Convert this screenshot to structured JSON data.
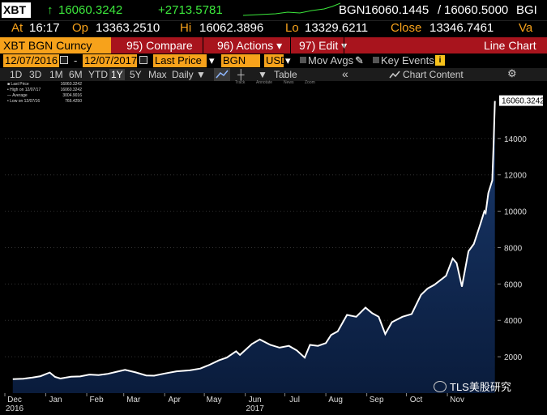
{
  "quote": {
    "ticker": "XBT",
    "arrow": "↑",
    "last": "16060.3242",
    "change": "+2713.5781",
    "source": "BGN",
    "bid": "16060.1445",
    "slash": "/",
    "ask": "16060.5000",
    "source_tail": "BGI",
    "at_label": "At",
    "time": "16:17",
    "op_label": "Op",
    "open": "13363.2510",
    "hi_label": "Hi",
    "high": "16062.3896",
    "lo_label": "Lo",
    "low": "13329.6211",
    "close_label": "Close",
    "close": "13346.7461",
    "va_label": "Va"
  },
  "commands": {
    "security": "XBT BGN Curncy",
    "compare": "95) Compare",
    "actions": "96) Actions ▾",
    "edit": "97) Edit ▾",
    "chart_type": "Line Chart"
  },
  "params": {
    "start_date": "12/07/2016",
    "dash": "-",
    "end_date": "12/07/2017",
    "field": "Last Price",
    "source": "BGN",
    "currency": "USD",
    "mov_avgs": "Mov Avgs",
    "key_events": "Key Events",
    "info": "i"
  },
  "range": {
    "items": [
      "1D",
      "3D",
      "1M",
      "6M",
      "YTD",
      "1Y",
      "5Y",
      "Max"
    ],
    "active": "1Y",
    "frequency": "Daily ▼",
    "table": "Table",
    "back": "«",
    "chart_content": "Chart Content",
    "gear": "⚙"
  },
  "subtool": {
    "track": "Track",
    "annotate": "Annotate",
    "news": "News",
    "zoom": "Zoom"
  },
  "legend": {
    "last_price_label": "Last Price",
    "last_price_value": "16060.3242",
    "high_label": "High on 12/07/17",
    "high_value": "16060.3242",
    "avg_label": "Average",
    "avg_value": "3004.9016",
    "low_label": "Low on 12/07/16",
    "low_value": "766.4250"
  },
  "watermark": "TLS美股研究",
  "colors": {
    "background": "#000000",
    "line": "#ffffff",
    "area_top": "#1a3a6e",
    "area_bottom": "#0a1c3c",
    "accent_orange": "#f7a21b",
    "command_red": "#a8141d",
    "price_green": "#3ce83c"
  },
  "chart_data": {
    "type": "area",
    "title": "",
    "xlabel": "",
    "ylabel": "",
    "ylim": [
      0,
      16800
    ],
    "y_ticks": [
      2000,
      4000,
      6000,
      8000,
      10000,
      12000,
      14000
    ],
    "last_label": "16060.3242",
    "x_ticks": [
      "Dec",
      "Jan",
      "Feb",
      "Mar",
      "Apr",
      "May",
      "Jun",
      "Jul",
      "Aug",
      "Sep",
      "Oct",
      "Nov"
    ],
    "x_year_labels": [
      {
        "month": "Dec",
        "year": "2016"
      },
      {
        "month": "Jun",
        "year": "2017"
      }
    ],
    "series": [
      {
        "x": [
          "2016-12-07",
          "2016-12-15",
          "2016-12-22",
          "2016-12-28",
          "2017-01-04",
          "2017-01-08",
          "2017-01-12",
          "2017-01-20",
          "2017-01-27",
          "2017-02-03",
          "2017-02-10",
          "2017-02-17",
          "2017-02-24",
          "2017-03-02",
          "2017-03-10",
          "2017-03-18",
          "2017-03-24",
          "2017-04-01",
          "2017-04-10",
          "2017-04-20",
          "2017-04-28",
          "2017-05-05",
          "2017-05-12",
          "2017-05-18",
          "2017-05-25",
          "2017-05-28",
          "2017-06-06",
          "2017-06-12",
          "2017-06-20",
          "2017-06-27",
          "2017-07-04",
          "2017-07-10",
          "2017-07-16",
          "2017-07-20",
          "2017-07-26",
          "2017-08-01",
          "2017-08-05",
          "2017-08-10",
          "2017-08-17",
          "2017-08-24",
          "2017-08-31",
          "2017-09-05",
          "2017-09-10",
          "2017-09-15",
          "2017-09-20",
          "2017-09-28",
          "2017-10-05",
          "2017-10-12",
          "2017-10-17",
          "2017-10-22",
          "2017-10-31",
          "2017-11-05",
          "2017-11-08",
          "2017-11-12",
          "2017-11-17",
          "2017-11-21",
          "2017-11-26",
          "2017-11-29",
          "2017-11-30",
          "2017-12-02",
          "2017-12-05",
          "2017-12-06",
          "2017-12-07"
        ],
        "values": [
          766,
          790,
          860,
          930,
          1130,
          890,
          800,
          900,
          920,
          1020,
          990,
          1060,
          1180,
          1280,
          1140,
          970,
          960,
          1080,
          1200,
          1250,
          1350,
          1560,
          1800,
          1950,
          2300,
          2100,
          2700,
          2950,
          2650,
          2500,
          2600,
          2350,
          1950,
          2650,
          2600,
          2750,
          3200,
          3400,
          4300,
          4200,
          4700,
          4400,
          4200,
          3250,
          3900,
          4200,
          4350,
          5400,
          5750,
          5950,
          6450,
          7400,
          7150,
          5850,
          7800,
          8200,
          9300,
          10000,
          9900,
          11000,
          11700,
          13700,
          16060
        ]
      }
    ]
  }
}
